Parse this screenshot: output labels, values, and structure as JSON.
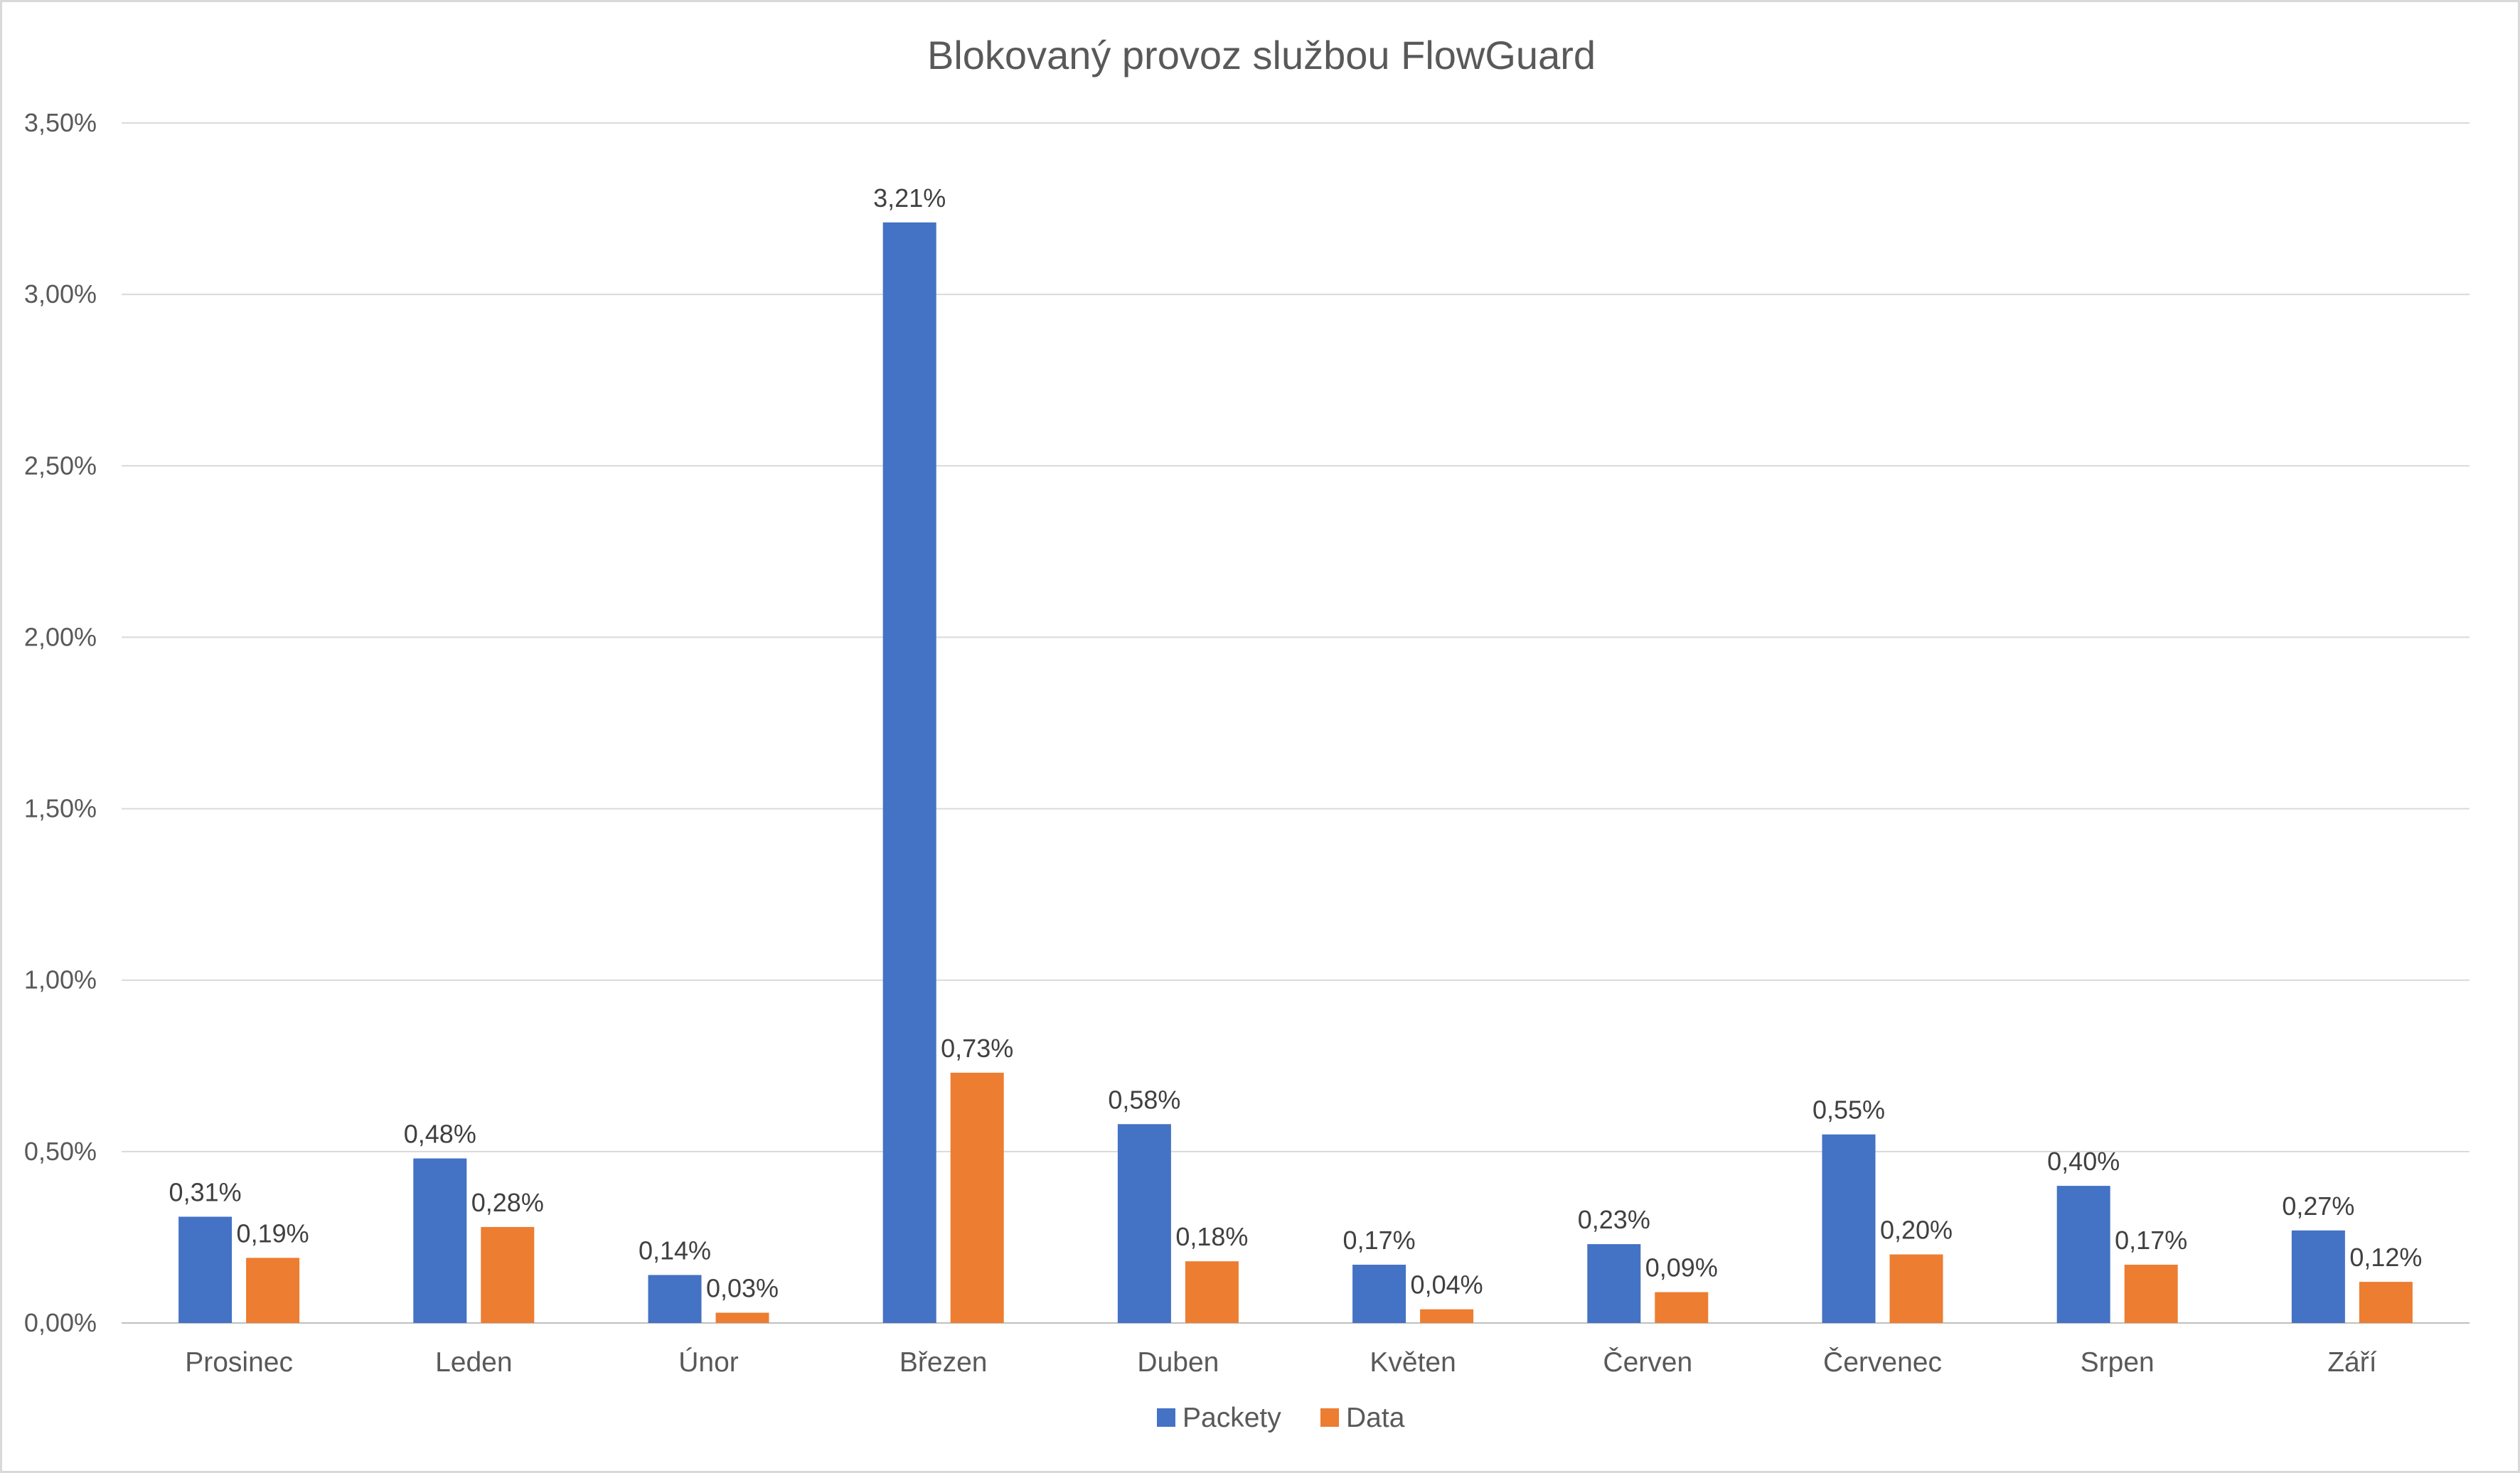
{
  "chart_data": {
    "type": "bar",
    "title": "Blokovaný provoz službou FlowGuard",
    "xlabel": "",
    "ylabel": "",
    "categories": [
      "Prosinec",
      "Leden",
      "Únor",
      "Březen",
      "Duben",
      "Květen",
      "Červen",
      "Červenec",
      "Srpen",
      "Září"
    ],
    "series": [
      {
        "name": "Packety",
        "color": "#4472C4",
        "values": [
          0.31,
          0.48,
          0.14,
          3.21,
          0.58,
          0.17,
          0.23,
          0.55,
          0.4,
          0.27
        ],
        "labels": [
          "0,31%",
          "0,48%",
          "0,14%",
          "3,21%",
          "0,58%",
          "0,17%",
          "0,23%",
          "0,55%",
          "0,40%",
          "0,27%"
        ]
      },
      {
        "name": "Data",
        "color": "#ED7D31",
        "values": [
          0.19,
          0.28,
          0.03,
          0.73,
          0.18,
          0.04,
          0.09,
          0.2,
          0.17,
          0.12
        ],
        "labels": [
          "0,19%",
          "0,28%",
          "0,03%",
          "0,73%",
          "0,18%",
          "0,04%",
          "0,09%",
          "0,20%",
          "0,17%",
          "0,12%"
        ]
      }
    ],
    "ylim": [
      0,
      3.5
    ],
    "yticks": [
      0,
      0.5,
      1.0,
      1.5,
      2.0,
      2.5,
      3.0,
      3.5
    ],
    "ytick_labels": [
      "0,00%",
      "0,50%",
      "1,00%",
      "1,50%",
      "2,00%",
      "2,50%",
      "3,00%",
      "3,50%"
    ],
    "grid": true,
    "legend_position": "bottom",
    "gridline_color": "#d9d9d9",
    "axis_color": "#bfbfbf"
  }
}
